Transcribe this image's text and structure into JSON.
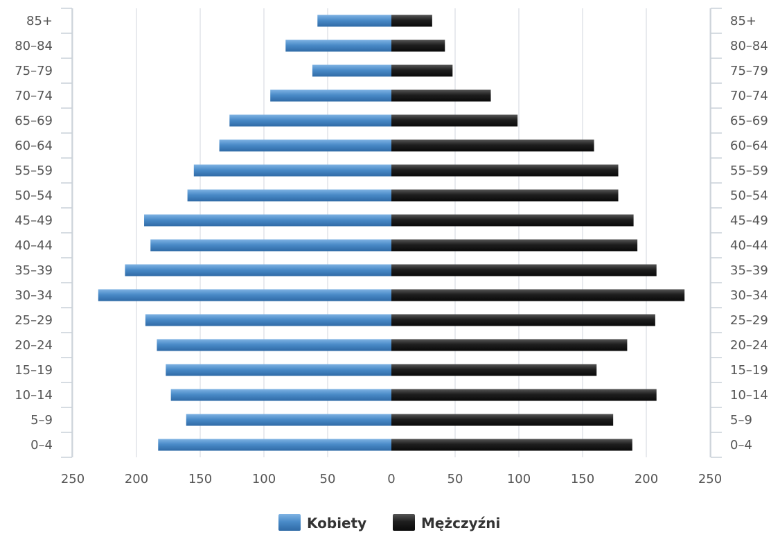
{
  "chart_data": {
    "type": "bar",
    "orientation": "horizontal",
    "subtype": "population-pyramid",
    "categories": [
      "0-4",
      "5-9",
      "10-14",
      "15-19",
      "20-24",
      "25-29",
      "30-34",
      "35-39",
      "40-44",
      "45-49",
      "50-54",
      "55-59",
      "60-64",
      "65-69",
      "70-74",
      "75-79",
      "80-84",
      "85+"
    ],
    "category_labels": [
      "0–4",
      "5–9",
      "10–14",
      "15–19",
      "20–24",
      "25–29",
      "30–34",
      "35–39",
      "40–44",
      "45–49",
      "50–54",
      "55–59",
      "60–64",
      "65–69",
      "70–74",
      "75–79",
      "80–84",
      "85+"
    ],
    "series": [
      {
        "name": "Kobiety",
        "side": "left",
        "color": "#4a8bc8",
        "values": [
          183,
          161,
          173,
          177,
          184,
          193,
          230,
          209,
          189,
          194,
          160,
          155,
          135,
          127,
          95,
          62,
          83,
          58
        ]
      },
      {
        "name": "Mężczyźni",
        "side": "right",
        "color": "#1c1c1c",
        "values": [
          189,
          174,
          208,
          161,
          185,
          207,
          230,
          208,
          193,
          190,
          178,
          178,
          159,
          99,
          78,
          48,
          42,
          32
        ]
      }
    ],
    "x_ticks": [
      250,
      200,
      150,
      100,
      50,
      0,
      50,
      100,
      150,
      200,
      250
    ],
    "xlim": [
      -250,
      250
    ],
    "grid": true,
    "legend": "bottom-center",
    "xlabel": "",
    "ylabel": ""
  }
}
